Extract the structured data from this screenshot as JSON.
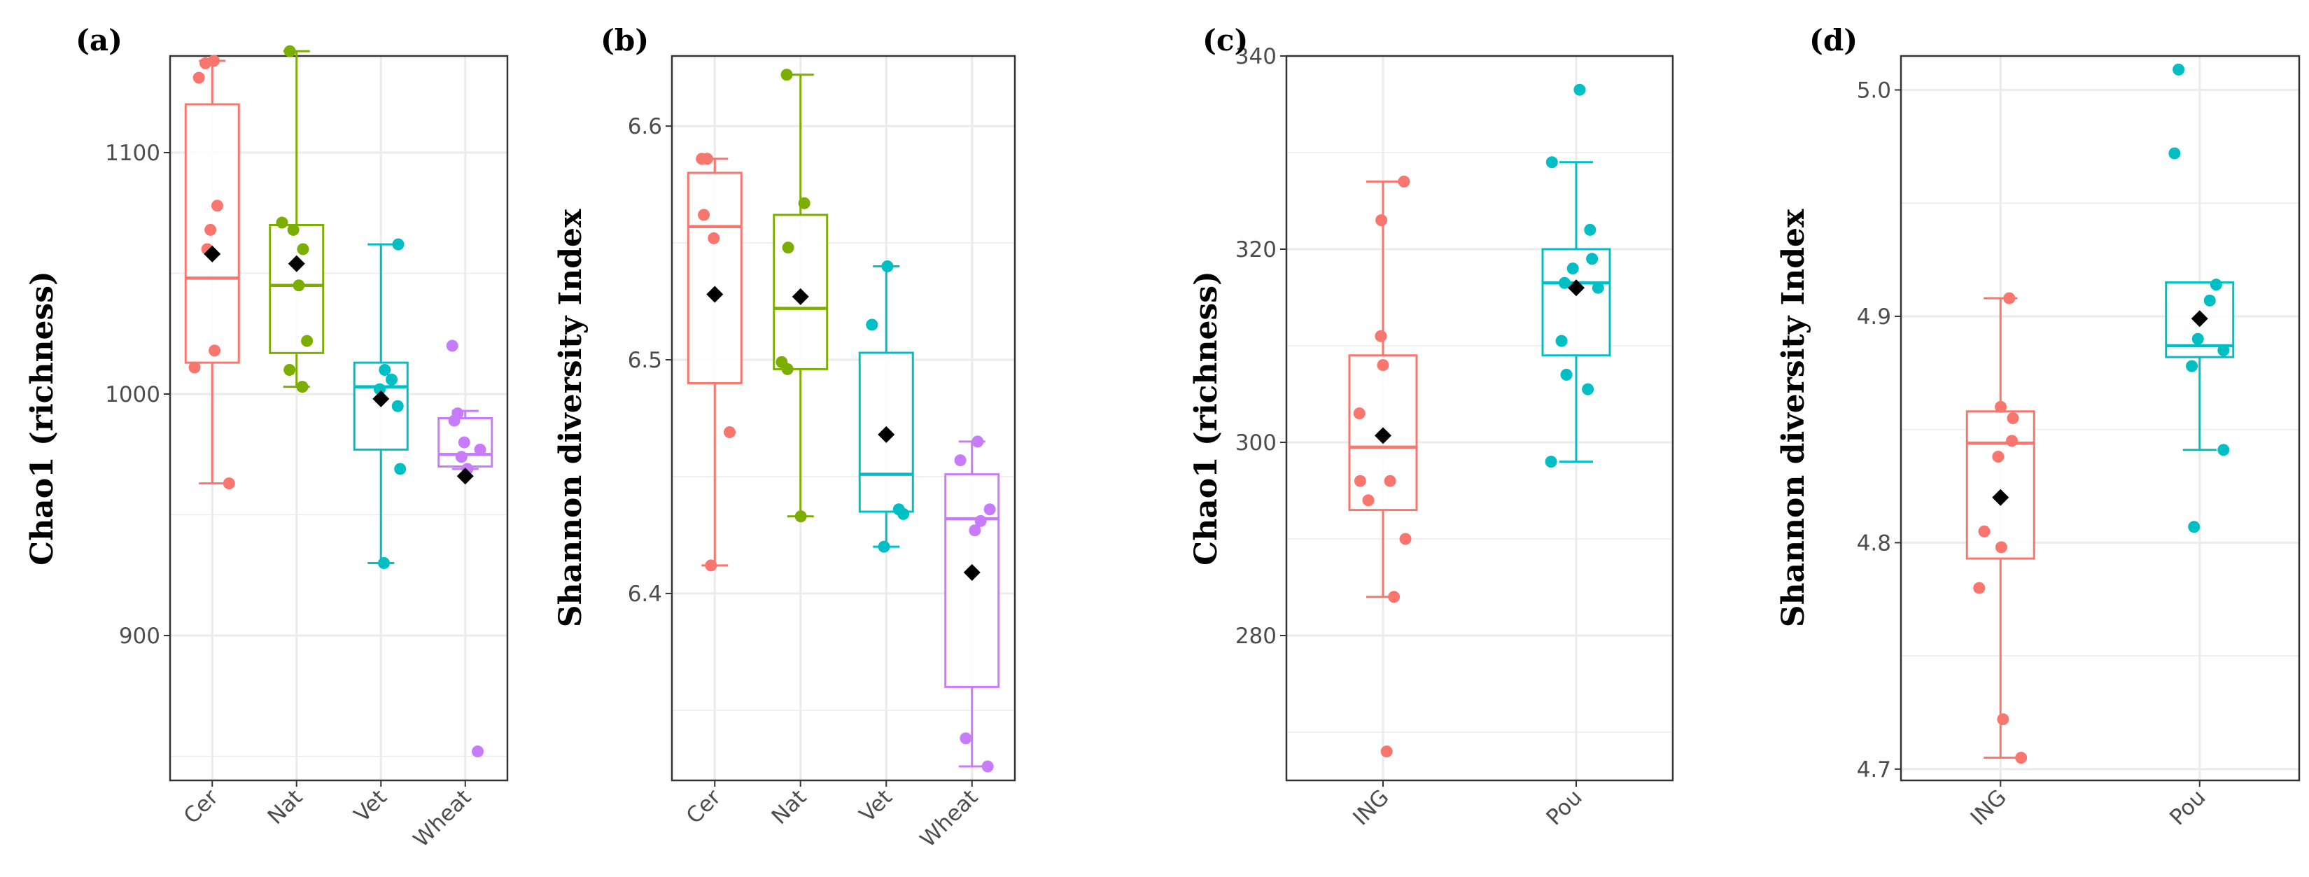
{
  "colors": {
    "red": "#F8766D",
    "green": "#7CAE00",
    "teal": "#00BFC4",
    "purple": "#C77CFF",
    "grid": "#ebebeb",
    "axis": "#333333"
  },
  "chart_data": [
    {
      "type": "boxplot",
      "panel_label": "(a)",
      "ylabel": "Chao1 (richness)",
      "ylim": [
        840,
        1140
      ],
      "yticks": [
        900,
        1000,
        1100
      ],
      "categories": [
        "Cer",
        "Nat",
        "Vet",
        "Wheat"
      ],
      "colors": [
        "#F8766D",
        "#7CAE00",
        "#00BFC4",
        "#C77CFF"
      ],
      "boxes": [
        {
          "name": "Cer",
          "q1": 1013,
          "median": 1048,
          "q3": 1120,
          "whisker_low": 963,
          "whisker_high": 1138,
          "mean": 1058,
          "points": [
            963,
            1011,
            1018,
            1060,
            1068,
            1078,
            1131,
            1137,
            1138
          ]
        },
        {
          "name": "Nat",
          "q1": 1017,
          "median": 1045,
          "q3": 1070,
          "whisker_low": 1003,
          "whisker_high": 1142,
          "mean": 1054,
          "points": [
            1003,
            1010,
            1022,
            1045,
            1060,
            1068,
            1071,
            1142
          ]
        },
        {
          "name": "Vet",
          "q1": 977,
          "median": 1003,
          "q3": 1013,
          "whisker_low": 930,
          "whisker_high": 1062,
          "mean": 998,
          "points": [
            930,
            969,
            995,
            1002,
            1006,
            1010,
            1062
          ]
        },
        {
          "name": "Wheat",
          "q1": 970,
          "median": 975,
          "q3": 990,
          "whisker_low": 969,
          "whisker_high": 993,
          "mean": 966,
          "points": [
            852,
            969,
            974,
            977,
            980,
            989,
            992,
            1020
          ]
        }
      ]
    },
    {
      "type": "boxplot",
      "panel_label": "(b)",
      "ylabel": "Shannon diversity Index",
      "ylim": [
        6.32,
        6.63
      ],
      "yticks": [
        6.4,
        6.5,
        6.6
      ],
      "categories": [
        "Cer",
        "Nat",
        "Vet",
        "Wheat"
      ],
      "colors": [
        "#F8766D",
        "#7CAE00",
        "#00BFC4",
        "#C77CFF"
      ],
      "boxes": [
        {
          "name": "Cer",
          "q1": 6.49,
          "median": 6.557,
          "q3": 6.58,
          "whisker_low": 6.412,
          "whisker_high": 6.586,
          "mean": 6.528,
          "points": [
            6.412,
            6.469,
            6.552,
            6.562,
            6.586,
            6.586
          ]
        },
        {
          "name": "Nat",
          "q1": 6.496,
          "median": 6.522,
          "q3": 6.562,
          "whisker_low": 6.433,
          "whisker_high": 6.622,
          "mean": 6.527,
          "points": [
            6.433,
            6.496,
            6.499,
            6.548,
            6.567,
            6.622
          ]
        },
        {
          "name": "Vet",
          "q1": 6.435,
          "median": 6.451,
          "q3": 6.503,
          "whisker_low": 6.42,
          "whisker_high": 6.54,
          "mean": 6.468,
          "points": [
            6.42,
            6.434,
            6.436,
            6.515,
            6.54
          ]
        },
        {
          "name": "Wheat",
          "q1": 6.36,
          "median": 6.432,
          "q3": 6.451,
          "whisker_low": 6.326,
          "whisker_high": 6.465,
          "mean": 6.409,
          "points": [
            6.326,
            6.338,
            6.427,
            6.431,
            6.436,
            6.457,
            6.465
          ]
        }
      ]
    },
    {
      "type": "boxplot",
      "panel_label": "(c)",
      "ylabel": "Chao1 (richness)",
      "ylim": [
        265,
        340
      ],
      "yticks": [
        280,
        300,
        320,
        340
      ],
      "categories": [
        "ING",
        "Pou"
      ],
      "colors": [
        "#F8766D",
        "#00BFC4"
      ],
      "boxes": [
        {
          "name": "ING",
          "q1": 293,
          "median": 299.5,
          "q3": 309,
          "whisker_low": 284,
          "whisker_high": 327,
          "mean": 300.7,
          "points": [
            268,
            284,
            290,
            294,
            296,
            296,
            303,
            308,
            311,
            323,
            327
          ]
        },
        {
          "name": "Pou",
          "q1": 309,
          "median": 316.5,
          "q3": 320,
          "whisker_low": 298,
          "whisker_high": 329,
          "mean": 316,
          "points": [
            298,
            305.5,
            307,
            310.5,
            316,
            316.5,
            318,
            319,
            322,
            329,
            336.5
          ]
        }
      ]
    },
    {
      "type": "boxplot",
      "panel_label": "(d)",
      "ylabel": "Shannon diversity Index",
      "ylim": [
        4.695,
        5.015
      ],
      "yticks": [
        4.7,
        4.8,
        4.9,
        5.0
      ],
      "ytick_labels": [
        "4.7",
        "4.8",
        "4.9",
        "5.0"
      ],
      "categories": [
        "ING",
        "Pou"
      ],
      "colors": [
        "#F8766D",
        "#00BFC4"
      ],
      "boxes": [
        {
          "name": "ING",
          "q1": 4.793,
          "median": 4.844,
          "q3": 4.858,
          "whisker_low": 4.705,
          "whisker_high": 4.908,
          "mean": 4.82,
          "points": [
            4.705,
            4.722,
            4.78,
            4.798,
            4.805,
            4.838,
            4.845,
            4.855,
            4.86,
            4.908
          ]
        },
        {
          "name": "Pou",
          "q1": 4.882,
          "median": 4.887,
          "q3": 4.915,
          "whisker_low": 4.841,
          "whisker_high": 4.915,
          "mean": 4.899,
          "points": [
            4.807,
            4.841,
            4.878,
            4.885,
            4.89,
            4.907,
            4.914,
            4.972,
            5.009
          ]
        }
      ]
    }
  ]
}
